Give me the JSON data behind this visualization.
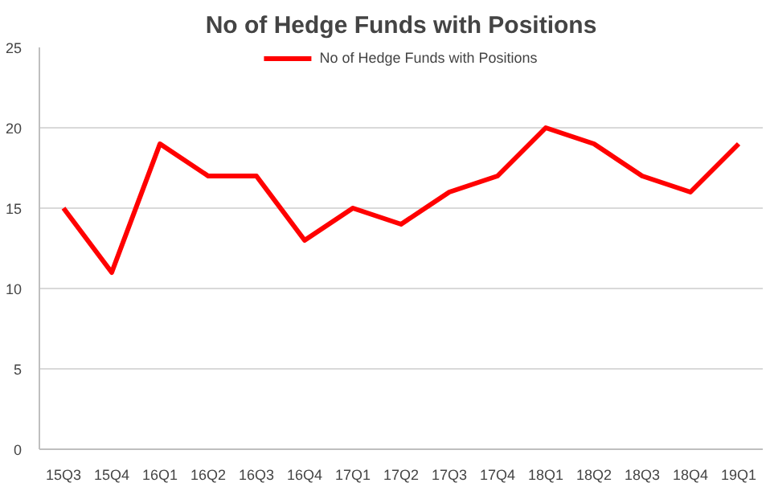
{
  "chart_data": {
    "type": "line",
    "title": "No of Hedge Funds with Positions",
    "categories": [
      "15Q3",
      "15Q4",
      "16Q1",
      "16Q2",
      "16Q3",
      "16Q4",
      "17Q1",
      "17Q2",
      "17Q3",
      "17Q4",
      "18Q1",
      "18Q2",
      "18Q3",
      "18Q4",
      "19Q1"
    ],
    "series": [
      {
        "name": "No of Hedge Funds with Positions",
        "color": "#ff0000",
        "values": [
          15,
          11,
          19,
          17,
          17,
          13,
          15,
          14,
          16,
          17,
          20,
          19,
          17,
          16,
          19
        ]
      }
    ],
    "ylim": [
      0,
      25
    ],
    "yticks": [
      0,
      5,
      10,
      15,
      20,
      25
    ],
    "grid": "y",
    "legend": "top",
    "marker": "none",
    "line_style": "solid"
  }
}
